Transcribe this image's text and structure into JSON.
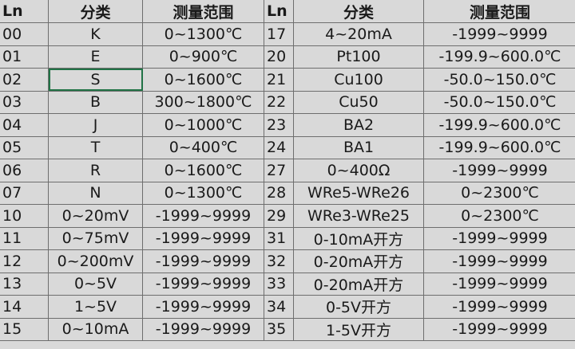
{
  "headers": [
    "Ln",
    "分类",
    "测量范围",
    "Ln",
    "分类",
    "测量范围"
  ],
  "selected_cell": "02-分类",
  "rows": [
    [
      "00",
      "K",
      "0~1300℃",
      "17",
      "4~20mA",
      "-1999~9999"
    ],
    [
      "01",
      "E",
      "0~900℃",
      "20",
      "Pt100",
      "-199.9~600.0℃"
    ],
    [
      "02",
      "S",
      "0~1600℃",
      "21",
      "Cu100",
      "-50.0~150.0℃"
    ],
    [
      "03",
      "B",
      "300~1800℃",
      "22",
      "Cu50",
      "-50.0~150.0℃"
    ],
    [
      "04",
      "J",
      "0~1000℃",
      "23",
      "BA2",
      "-199.9~600.0℃"
    ],
    [
      "05",
      "T",
      "0~400℃",
      "24",
      "BA1",
      "-199.9~600.0℃"
    ],
    [
      "06",
      "R",
      "0~1600℃",
      "27",
      "0~400Ω",
      "-1999~9999"
    ],
    [
      "07",
      "N",
      "0~1300℃",
      "28",
      "WRe5-WRe26",
      "0~2300℃"
    ],
    [
      "10",
      "0~20mV",
      "-1999~9999",
      "29",
      "WRe3-WRe25",
      "0~2300℃"
    ],
    [
      "11",
      "0~75mV",
      "-1999~9999",
      "31",
      "0-10mA开方",
      "-1999~9999"
    ],
    [
      "12",
      "0~200mV",
      "-1999~9999",
      "32",
      "0-20mA开方",
      "-1999~9999"
    ],
    [
      "13",
      "0~5V",
      "-1999~9999",
      "33",
      "0-20mA开方",
      "-1999~9999"
    ],
    [
      "14",
      "1~5V",
      "-1999~9999",
      "34",
      "0-5V开方",
      "-1999~9999"
    ],
    [
      "15",
      "0~10mA",
      "-1999~9999",
      "35",
      "1-5V开方",
      "-1999~9999"
    ]
  ]
}
